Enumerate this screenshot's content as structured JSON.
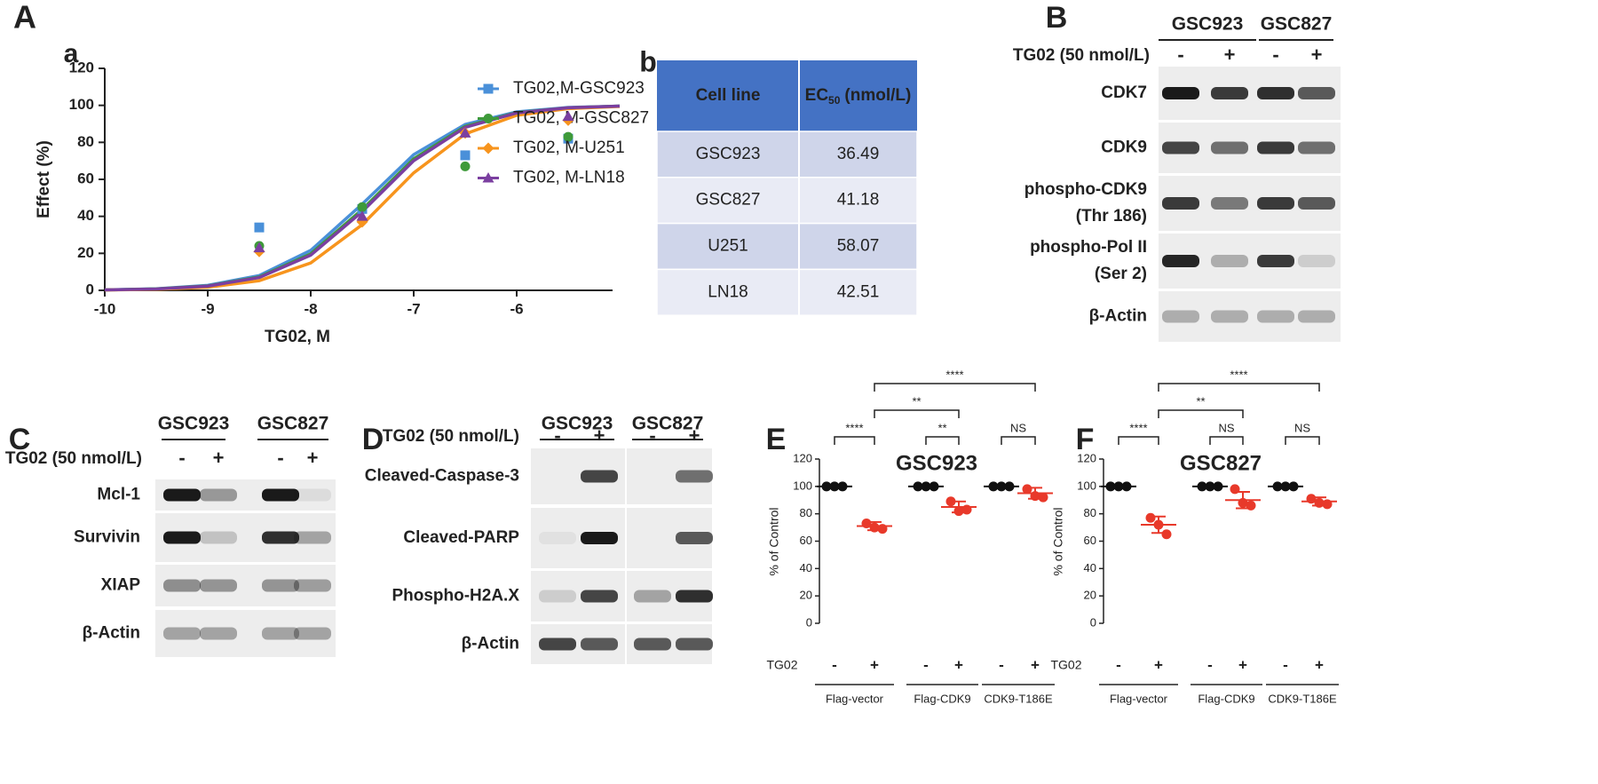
{
  "panel_labels": [
    "A",
    "a",
    "b",
    "B",
    "C",
    "D",
    "E",
    "F"
  ],
  "chart_data": [
    {
      "type": "scatter",
      "xlabel": "TG02, M",
      "ylabel": "Effect (%)",
      "xlim": [
        -10,
        -5
      ],
      "xticks": [
        -10,
        -9,
        -8,
        -7,
        -6
      ],
      "ylim": [
        0,
        120
      ],
      "yticks": [
        0,
        20,
        40,
        60,
        80,
        100,
        120
      ],
      "x": [
        -8.5,
        -7.5,
        -6.5,
        -5.5
      ],
      "fit_x": [
        -10,
        -9.5,
        -9,
        -8.5,
        -8,
        -7.5,
        -7,
        -6.5,
        -6,
        -5.5,
        -5
      ],
      "series": [
        {
          "name": "TG02,M-GSC923",
          "color": "#4a90d9",
          "marker": "square",
          "values": [
            34,
            44,
            73,
            82
          ],
          "fit_values": [
            0.27,
            0.86,
            2.68,
            8.0,
            21.6,
            46.6,
            73.4,
            89.7,
            96.5,
            98.9,
            99.6
          ]
        },
        {
          "name": "TG02, M-GSC827",
          "color": "#3e9a3a",
          "marker": "circle",
          "values": [
            24,
            45,
            67,
            83
          ],
          "fit_values": [
            0.24,
            0.77,
            2.4,
            7.2,
            19.7,
            43.7,
            71.1,
            88.6,
            96.1,
            98.7,
            99.6
          ]
        },
        {
          "name": "TG02, M-U251",
          "color": "#f7941d",
          "marker": "diamond",
          "values": [
            21,
            37,
            85,
            92
          ],
          "fit_values": [
            0.17,
            0.55,
            1.7,
            5.2,
            14.8,
            35.5,
            63.5,
            84.6,
            94.6,
            98.2,
            99.4
          ]
        },
        {
          "name": "TG02, M-LN18",
          "color": "#7b3fa0",
          "marker": "triangle",
          "values": [
            23,
            40,
            85,
            94
          ],
          "fit_values": [
            0.23,
            0.74,
            2.3,
            6.9,
            19.0,
            42.6,
            70.1,
            88.1,
            95.9,
            98.7,
            99.6
          ]
        }
      ]
    },
    {
      "type": "dot",
      "title": "GSC923",
      "ylabel": "% of Control",
      "row_label": "TG02",
      "ylim": [
        0,
        120
      ],
      "yticks": [
        0,
        20,
        40,
        60,
        80,
        100,
        120
      ],
      "categories": [
        "-",
        "+",
        "-",
        "+",
        "-",
        "+"
      ],
      "groups": [
        "Flag-vector",
        "Flag-CDK9",
        "CDK9-T186E"
      ],
      "colors": [
        "#111111",
        "#e8392a",
        "#111111",
        "#e8392a",
        "#111111",
        "#e8392a"
      ],
      "points": [
        [
          100,
          100,
          100
        ],
        [
          73,
          70,
          69
        ],
        [
          100,
          100,
          100
        ],
        [
          89,
          82,
          83
        ],
        [
          100,
          100,
          100
        ],
        [
          98,
          93,
          92
        ]
      ],
      "means": [
        100,
        71,
        100,
        85,
        100,
        95
      ],
      "sds": [
        0,
        3,
        0,
        4,
        0,
        4
      ],
      "brackets": [
        {
          "from": 0,
          "to": 1,
          "label": "****"
        },
        {
          "from": 2,
          "to": 3,
          "label": "**"
        },
        {
          "from": 4,
          "to": 5,
          "label": "NS"
        },
        {
          "from": 1,
          "to": 3,
          "label": "**"
        },
        {
          "from": 1,
          "to": 5,
          "label": "****"
        }
      ]
    },
    {
      "type": "dot",
      "title": "GSC827",
      "ylabel": "% of Control",
      "row_label": "TG02",
      "ylim": [
        0,
        120
      ],
      "yticks": [
        0,
        20,
        40,
        60,
        80,
        100,
        120
      ],
      "categories": [
        "-",
        "+",
        "-",
        "+",
        "-",
        "+"
      ],
      "groups": [
        "Flag-vector",
        "Flag-CDK9",
        "CDK9-T186E"
      ],
      "colors": [
        "#111111",
        "#e8392a",
        "#111111",
        "#e8392a",
        "#111111",
        "#e8392a"
      ],
      "points": [
        [
          100,
          100,
          100
        ],
        [
          77,
          72,
          65
        ],
        [
          100,
          100,
          100
        ],
        [
          98,
          88,
          86
        ],
        [
          100,
          100,
          100
        ],
        [
          91,
          88,
          87
        ]
      ],
      "means": [
        100,
        72,
        100,
        90,
        100,
        89
      ],
      "sds": [
        0,
        6,
        0,
        6,
        0,
        3
      ],
      "brackets": [
        {
          "from": 0,
          "to": 1,
          "label": "****"
        },
        {
          "from": 2,
          "to": 3,
          "label": "NS"
        },
        {
          "from": 4,
          "to": 5,
          "label": "NS"
        },
        {
          "from": 1,
          "to": 3,
          "label": "**"
        },
        {
          "from": 1,
          "to": 5,
          "label": "****"
        }
      ]
    }
  ],
  "table": {
    "header": [
      [
        "Cell line"
      ],
      [
        "EC",
        "50",
        "(nmol/L)"
      ]
    ],
    "rows": [
      [
        "GSC923",
        36.49
      ],
      [
        "GSC827",
        41.18
      ],
      [
        "U251",
        58.07
      ],
      [
        "LN18",
        42.51
      ]
    ]
  },
  "blots": [
    {
      "groups": [
        "GSC923",
        "GSC827"
      ],
      "treatment": "TG02 (50 nmol/L)",
      "signs": [
        "-",
        "+",
        "-",
        "+"
      ],
      "rows": [
        [
          "CDK7"
        ],
        [
          "CDK9"
        ],
        [
          "phospho-CDK9",
          "(Thr 186)"
        ],
        [
          "phospho-Pol II",
          "(Ser 2)"
        ],
        [
          "β-Actin"
        ]
      ]
    },
    {
      "groups": [
        "GSC923",
        "GSC827"
      ],
      "treatment": "TG02 (50 nmol/L)",
      "signs": [
        "-",
        "+",
        "-",
        "+"
      ],
      "rows": [
        [
          "Mcl-1"
        ],
        [
          "Survivin"
        ],
        [
          "XIAP"
        ],
        [
          "β-Actin"
        ]
      ]
    },
    {
      "groups": [
        "GSC923",
        "GSC827"
      ],
      "treatment": "TG02 (50 nmol/L)",
      "signs": [
        "-",
        "+",
        "-",
        "+"
      ],
      "rows": [
        [
          "Cleaved-Caspase-3"
        ],
        [
          "Cleaved-PARP"
        ],
        [
          "Phospho-H2A.X"
        ],
        [
          "β-Actin"
        ]
      ]
    }
  ]
}
